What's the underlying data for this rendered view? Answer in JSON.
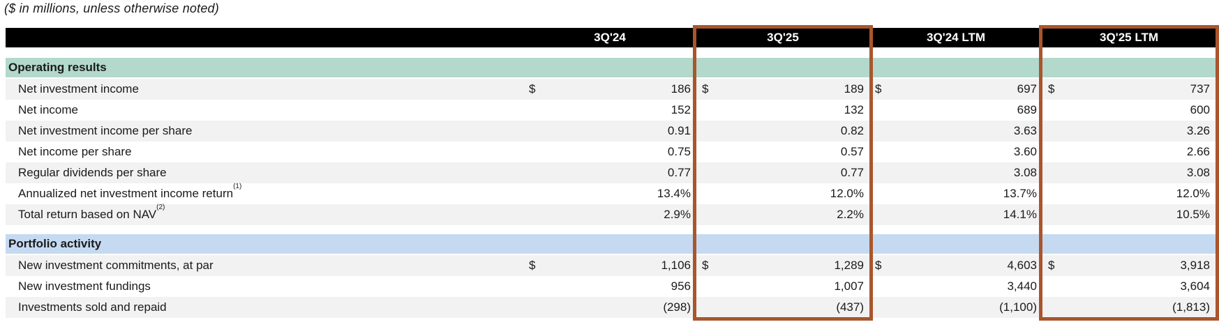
{
  "note": "($ in millions, unless otherwise noted)",
  "currency_symbol": "$",
  "columns": [
    "3Q'24",
    "3Q'25",
    "3Q'24 LTM",
    "3Q'25 LTM"
  ],
  "highlighted_columns": [
    1,
    3
  ],
  "colors": {
    "header_bar": "#000000",
    "header_text": "#ffffff",
    "operating_results_band": "#B2D9CC",
    "portfolio_activity_band": "#C5DAF1",
    "row_stripe": "#F2F2F2",
    "highlight_border": "#A9562C",
    "text": "#1a1a1a"
  },
  "sections": [
    {
      "title": "Operating results",
      "header_bg": "#B2D9CC",
      "rows": [
        {
          "label": "Net investment income",
          "sup": "",
          "dollar": true,
          "values": [
            "186",
            "189",
            "697",
            "737"
          ]
        },
        {
          "label": "Net income",
          "sup": "",
          "dollar": false,
          "values": [
            "152",
            "132",
            "689",
            "600"
          ]
        },
        {
          "label": "Net investment income per share",
          "sup": "",
          "dollar": false,
          "values": [
            "0.91",
            "0.82",
            "3.63",
            "3.26"
          ]
        },
        {
          "label": "Net income per share",
          "sup": "",
          "dollar": false,
          "values": [
            "0.75",
            "0.57",
            "3.60",
            "2.66"
          ]
        },
        {
          "label": "Regular dividends per share",
          "sup": "",
          "dollar": false,
          "values": [
            "0.77",
            "0.77",
            "3.08",
            "3.08"
          ]
        },
        {
          "label": "Annualized net investment income return",
          "sup": "(1)",
          "dollar": false,
          "values": [
            "13.4%",
            "12.0%",
            "13.7%",
            "12.0%"
          ]
        },
        {
          "label": "Total return based on NAV",
          "sup": "(2)",
          "dollar": false,
          "values": [
            "2.9%",
            "2.2%",
            "14.1%",
            "10.5%"
          ]
        }
      ]
    },
    {
      "title": "Portfolio activity",
      "header_bg": "#C5DAF1",
      "rows": [
        {
          "label": "New investment commitments, at par",
          "sup": "",
          "dollar": true,
          "values": [
            "1,106",
            "1,289",
            "4,603",
            "3,918"
          ]
        },
        {
          "label": "New investment fundings",
          "sup": "",
          "dollar": false,
          "values": [
            "956",
            "1,007",
            "3,440",
            "3,604"
          ]
        },
        {
          "label": "Investments sold and repaid",
          "sup": "",
          "dollar": false,
          "values": [
            "(298)",
            "(437)",
            "(1,100)",
            "(1,813)"
          ]
        }
      ]
    }
  ]
}
